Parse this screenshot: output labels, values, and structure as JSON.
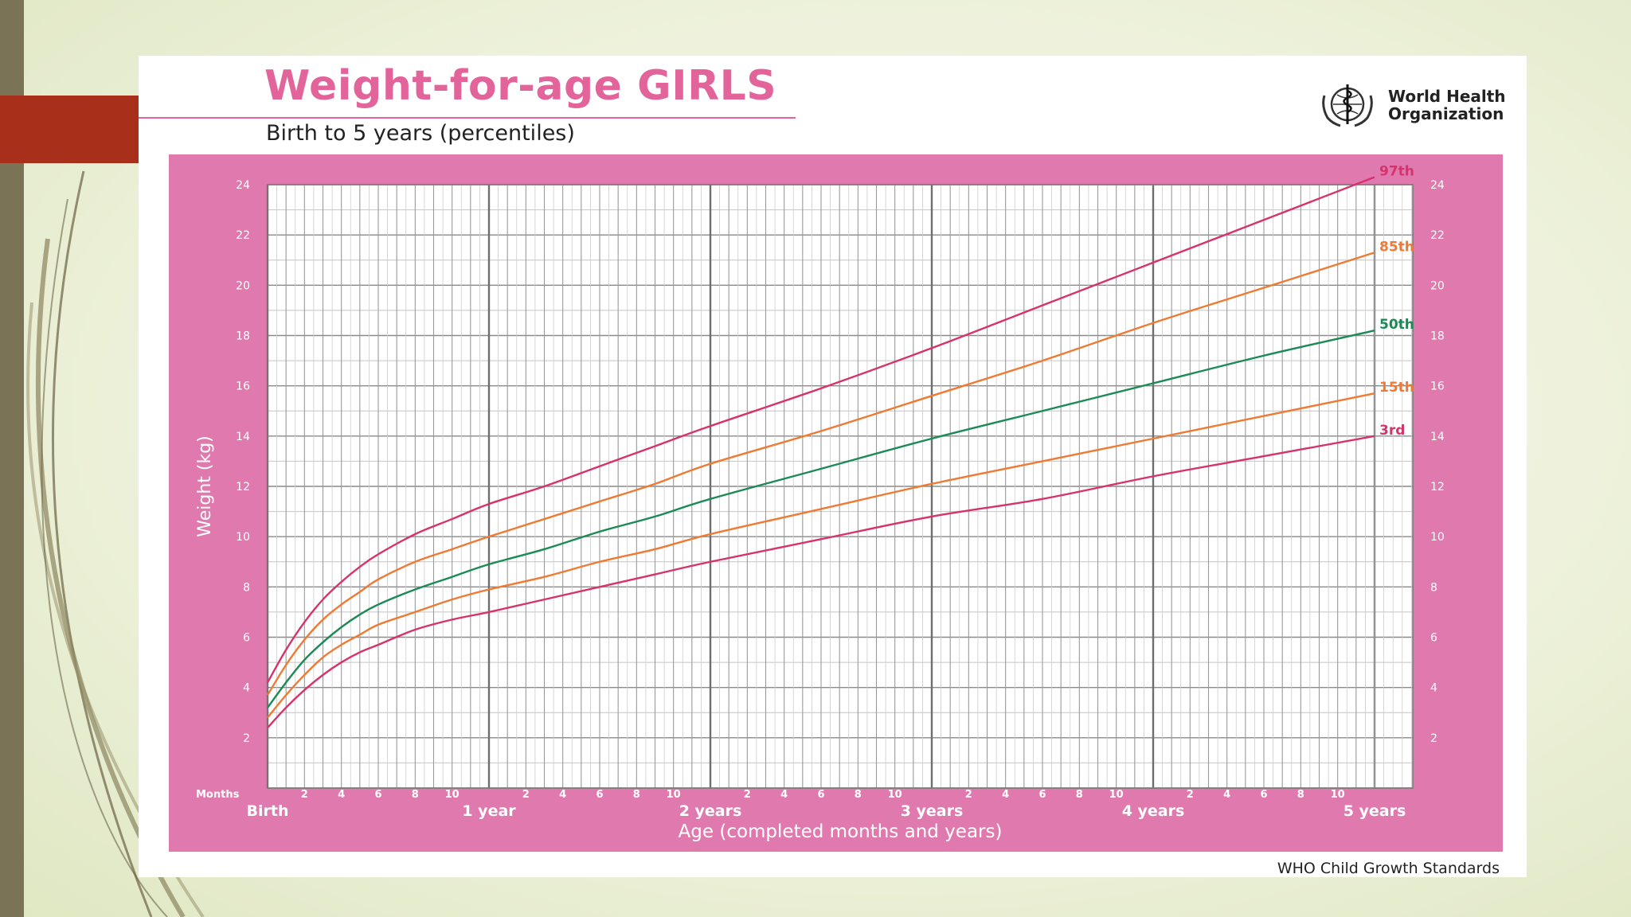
{
  "slide": {
    "accent_colors": {
      "left_bar": "#7a7355",
      "red_tab": "#a8301a",
      "background": "#eef2dc"
    }
  },
  "card": {
    "title": "Weight-for-age GIRLS",
    "subtitle": "Birth to 5 years (percentiles)",
    "org_line1": "World Health",
    "org_line2": "Organization",
    "org_logo_icon": "who-emblem-icon",
    "footer": "WHO Child Growth Standards",
    "colors": {
      "title": "#e2649b",
      "panel": "#e07aae",
      "p97": "#d6336c",
      "p85": "#ee7a33",
      "p50": "#1b8a56",
      "p15": "#ee7a33",
      "p3": "#d6336c"
    }
  },
  "chart_data": {
    "type": "line",
    "title": "Weight-for-age GIRLS",
    "subtitle": "Birth to 5 years (percentiles)",
    "xlabel": "Age (completed months and years)",
    "ylabel": "Weight (kg)",
    "xlim": [
      0,
      60
    ],
    "ylim": [
      0,
      24
    ],
    "grid": true,
    "months_label": "Months",
    "y_ticks": [
      "2",
      "4",
      "6",
      "8",
      "10",
      "12",
      "14",
      "16",
      "18",
      "20",
      "22",
      "24"
    ],
    "y_tick_values": [
      2,
      4,
      6,
      8,
      10,
      12,
      14,
      16,
      18,
      20,
      22,
      24
    ],
    "month_ticks": [
      "2",
      "4",
      "6",
      "8",
      "10",
      "2",
      "4",
      "6",
      "8",
      "10",
      "2",
      "4",
      "6",
      "8",
      "10",
      "2",
      "4",
      "6",
      "8",
      "10",
      "2",
      "4",
      "6",
      "8",
      "10"
    ],
    "month_tick_values": [
      2,
      4,
      6,
      8,
      10,
      14,
      16,
      18,
      20,
      22,
      26,
      28,
      30,
      32,
      34,
      38,
      40,
      42,
      44,
      46,
      50,
      52,
      54,
      56,
      58
    ],
    "year_labels": [
      "Birth",
      "1 year",
      "2 years",
      "3 years",
      "4 years",
      "5 years"
    ],
    "year_values": [
      0,
      12,
      24,
      36,
      48,
      60
    ],
    "x": [
      0,
      1,
      2,
      3,
      4,
      5,
      6,
      8,
      10,
      12,
      15,
      18,
      21,
      24,
      30,
      36,
      42,
      48,
      54,
      60
    ],
    "series": [
      {
        "name": "97th",
        "color": "#d6336c",
        "values": [
          4.2,
          5.5,
          6.6,
          7.5,
          8.2,
          8.8,
          9.3,
          10.1,
          10.7,
          11.3,
          12.0,
          12.8,
          13.6,
          14.4,
          15.9,
          17.5,
          19.2,
          20.9,
          22.6,
          24.3
        ]
      },
      {
        "name": "85th",
        "color": "#ee7a33",
        "values": [
          3.7,
          4.9,
          5.9,
          6.7,
          7.3,
          7.8,
          8.3,
          9.0,
          9.5,
          10.0,
          10.7,
          11.4,
          12.1,
          12.9,
          14.2,
          15.6,
          17.0,
          18.5,
          19.9,
          21.3
        ]
      },
      {
        "name": "50th",
        "color": "#1b8a56",
        "values": [
          3.2,
          4.2,
          5.1,
          5.8,
          6.4,
          6.9,
          7.3,
          7.9,
          8.4,
          8.9,
          9.5,
          10.2,
          10.8,
          11.5,
          12.7,
          13.9,
          15.0,
          16.1,
          17.2,
          18.2
        ]
      },
      {
        "name": "15th",
        "color": "#ee7a33",
        "values": [
          2.8,
          3.7,
          4.5,
          5.2,
          5.7,
          6.1,
          6.5,
          7.0,
          7.5,
          7.9,
          8.4,
          9.0,
          9.5,
          10.1,
          11.1,
          12.1,
          13.0,
          13.9,
          14.8,
          15.7
        ]
      },
      {
        "name": "3rd",
        "color": "#d6336c",
        "values": [
          2.4,
          3.2,
          3.9,
          4.5,
          5.0,
          5.4,
          5.7,
          6.3,
          6.7,
          7.0,
          7.5,
          8.0,
          8.5,
          9.0,
          9.9,
          10.8,
          11.5,
          12.4,
          13.2,
          14.0
        ]
      }
    ]
  }
}
